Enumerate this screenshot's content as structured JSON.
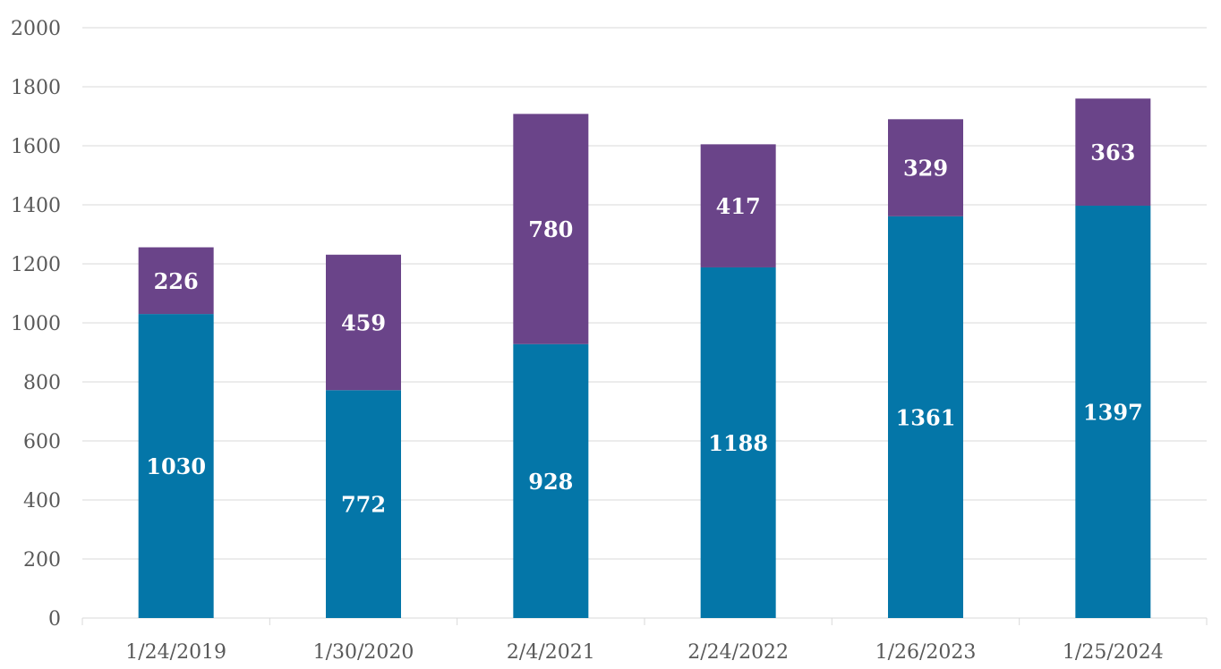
{
  "chart_data": {
    "type": "bar",
    "stacked": true,
    "categories": [
      "1/24/2019",
      "1/30/2020",
      "2/4/2021",
      "2/24/2022",
      "1/26/2023",
      "1/25/2024"
    ],
    "series": [
      {
        "color": "#0476A8",
        "values": [
          1030,
          772,
          928,
          1188,
          1361,
          1397
        ]
      },
      {
        "color": "#6A4489",
        "values": [
          226,
          459,
          780,
          417,
          329,
          363
        ]
      }
    ],
    "ylim": [
      0,
      2000
    ],
    "yticks": [
      0,
      200,
      400,
      600,
      800,
      1000,
      1200,
      1400,
      1600,
      1800,
      2000
    ],
    "grid": true,
    "legend": "none",
    "title": "",
    "xlabel": "",
    "ylabel": ""
  }
}
